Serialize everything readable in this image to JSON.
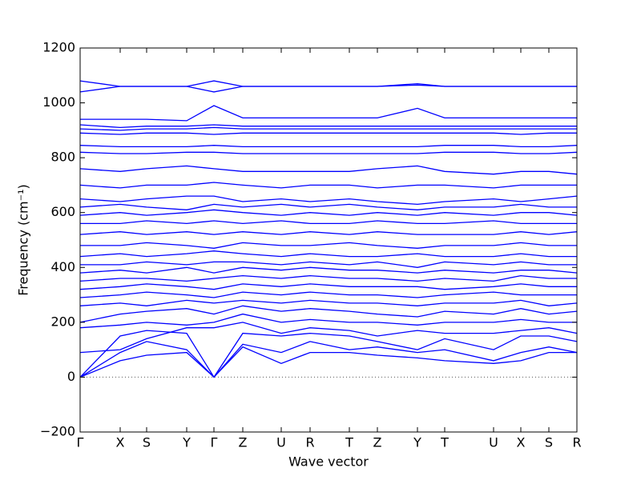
{
  "chart_data": {
    "type": "line",
    "xlabel": "Wave vector",
    "ylabel": "Frequency (cm⁻¹)",
    "color": "#0000ff",
    "x": [
      0,
      0.5,
      0.83,
      1.33,
      1.67,
      2.03,
      2.51,
      2.87,
      3.36,
      3.71,
      4.21,
      4.55,
      5.16,
      5.5,
      5.85,
      6.2
    ],
    "xlim": [
      0,
      6.2
    ],
    "xticks": [
      {
        "value": 0,
        "label": "Γ"
      },
      {
        "value": 0.5,
        "label": "X"
      },
      {
        "value": 0.83,
        "label": "S"
      },
      {
        "value": 1.33,
        "label": "Y"
      },
      {
        "value": 1.67,
        "label": "Γ"
      },
      {
        "value": 2.03,
        "label": "Z"
      },
      {
        "value": 2.51,
        "label": "U"
      },
      {
        "value": 2.87,
        "label": "R"
      },
      {
        "value": 3.36,
        "label": "T"
      },
      {
        "value": 3.71,
        "label": "Z"
      },
      {
        "value": 4.21,
        "label": "Y"
      },
      {
        "value": 4.55,
        "label": "T"
      },
      {
        "value": 5.16,
        "label": "U"
      },
      {
        "value": 5.5,
        "label": "X"
      },
      {
        "value": 5.85,
        "label": "S"
      },
      {
        "value": 6.2,
        "label": "R"
      }
    ],
    "ylim": [
      -200,
      1200
    ],
    "yticks": [
      {
        "value": -200,
        "label": "−200"
      },
      0,
      200,
      400,
      600,
      800,
      1000,
      1200
    ],
    "series": [
      {
        "values": [
          0,
          60,
          80,
          90,
          0,
          110,
          50,
          90,
          90,
          80,
          70,
          60,
          50,
          60,
          90,
          90
        ]
      },
      {
        "values": [
          0,
          90,
          130,
          100,
          0,
          120,
          90,
          130,
          100,
          110,
          90,
          100,
          60,
          90,
          110,
          90
        ]
      },
      {
        "values": [
          0,
          150,
          170,
          160,
          0,
          160,
          150,
          160,
          150,
          130,
          100,
          140,
          100,
          150,
          150,
          130
        ]
      },
      {
        "values": [
          90,
          100,
          140,
          180,
          180,
          200,
          160,
          180,
          170,
          150,
          170,
          160,
          160,
          170,
          180,
          160
        ]
      },
      {
        "values": [
          180,
          190,
          200,
          190,
          200,
          230,
          200,
          210,
          200,
          200,
          190,
          200,
          200,
          210,
          200,
          200
        ]
      },
      {
        "values": [
          200,
          230,
          240,
          250,
          230,
          260,
          240,
          250,
          240,
          230,
          220,
          240,
          230,
          250,
          230,
          240
        ]
      },
      {
        "values": [
          260,
          270,
          260,
          280,
          270,
          280,
          270,
          280,
          270,
          270,
          260,
          270,
          270,
          280,
          260,
          270
        ]
      },
      {
        "values": [
          290,
          300,
          310,
          300,
          290,
          310,
          300,
          310,
          300,
          300,
          290,
          300,
          310,
          300,
          300,
          300
        ]
      },
      {
        "values": [
          320,
          330,
          340,
          330,
          320,
          340,
          330,
          340,
          330,
          330,
          330,
          320,
          330,
          340,
          330,
          330
        ]
      },
      {
        "values": [
          350,
          360,
          360,
          350,
          360,
          370,
          360,
          370,
          360,
          360,
          350,
          360,
          350,
          370,
          360,
          360
        ]
      },
      {
        "values": [
          380,
          390,
          380,
          400,
          380,
          400,
          390,
          400,
          390,
          390,
          380,
          390,
          380,
          390,
          390,
          380
        ]
      },
      {
        "values": [
          410,
          410,
          420,
          410,
          420,
          420,
          410,
          420,
          410,
          420,
          400,
          420,
          410,
          420,
          410,
          410
        ]
      },
      {
        "values": [
          440,
          450,
          440,
          450,
          460,
          450,
          440,
          450,
          440,
          440,
          450,
          440,
          440,
          450,
          440,
          440
        ]
      },
      {
        "values": [
          480,
          480,
          490,
          480,
          470,
          490,
          480,
          480,
          490,
          480,
          470,
          480,
          480,
          490,
          480,
          480
        ]
      },
      {
        "values": [
          520,
          530,
          520,
          530,
          520,
          530,
          520,
          530,
          520,
          530,
          520,
          520,
          520,
          530,
          520,
          530
        ]
      },
      {
        "values": [
          560,
          560,
          570,
          560,
          570,
          560,
          570,
          560,
          560,
          570,
          560,
          560,
          570,
          560,
          560,
          560
        ]
      },
      {
        "values": [
          590,
          600,
          590,
          600,
          610,
          600,
          590,
          600,
          590,
          600,
          590,
          600,
          590,
          600,
          600,
          590
        ]
      },
      {
        "values": [
          620,
          630,
          620,
          610,
          630,
          620,
          630,
          620,
          630,
          620,
          610,
          620,
          620,
          630,
          620,
          620
        ]
      },
      {
        "values": [
          650,
          640,
          650,
          660,
          660,
          640,
          650,
          640,
          650,
          640,
          630,
          640,
          650,
          640,
          650,
          660
        ]
      },
      {
        "values": [
          700,
          690,
          700,
          700,
          710,
          700,
          690,
          700,
          700,
          690,
          700,
          700,
          690,
          700,
          700,
          700
        ]
      },
      {
        "values": [
          760,
          750,
          760,
          770,
          760,
          750,
          750,
          750,
          750,
          760,
          770,
          750,
          740,
          750,
          750,
          740
        ]
      },
      {
        "values": [
          820,
          815,
          815,
          820,
          820,
          815,
          815,
          815,
          815,
          815,
          815,
          820,
          820,
          815,
          815,
          820
        ]
      },
      {
        "values": [
          845,
          840,
          840,
          840,
          845,
          840,
          840,
          840,
          840,
          840,
          840,
          845,
          845,
          840,
          840,
          845
        ]
      },
      {
        "values": [
          890,
          885,
          890,
          890,
          885,
          890,
          890,
          890,
          890,
          890,
          890,
          890,
          890,
          885,
          890,
          890
        ]
      },
      {
        "values": [
          905,
          900,
          905,
          905,
          910,
          905,
          905,
          905,
          905,
          905,
          905,
          905,
          905,
          905,
          905,
          905
        ]
      },
      {
        "values": [
          920,
          910,
          915,
          915,
          920,
          915,
          915,
          915,
          915,
          915,
          915,
          915,
          915,
          915,
          915,
          915
        ]
      },
      {
        "values": [
          940,
          940,
          940,
          935,
          990,
          945,
          945,
          945,
          945,
          945,
          980,
          945,
          945,
          945,
          945,
          945
        ]
      },
      {
        "values": [
          1040,
          1060,
          1060,
          1060,
          1040,
          1060,
          1060,
          1060,
          1060,
          1060,
          1070,
          1060,
          1060,
          1060,
          1060,
          1060
        ]
      },
      {
        "values": [
          1080,
          1060,
          1060,
          1060,
          1080,
          1060,
          1060,
          1060,
          1060,
          1060,
          1065,
          1060,
          1060,
          1060,
          1060,
          1060
        ]
      }
    ]
  }
}
